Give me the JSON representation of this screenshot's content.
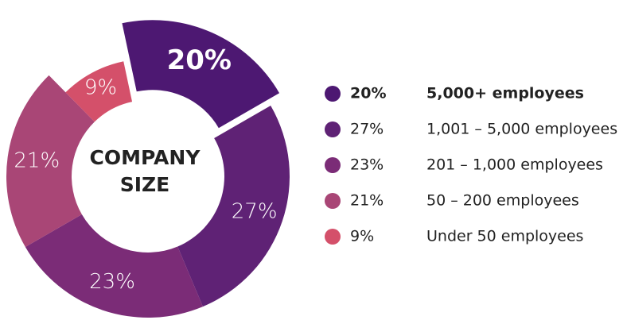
{
  "chart_data": {
    "type": "donut",
    "center_label": [
      "COMPANY",
      "SIZE"
    ],
    "categories": [
      "5,000+ employees",
      "1,001 – 5,000 employees",
      "201 – 1,000 employees",
      "50 – 200 employees",
      "Under 50 employees"
    ],
    "values": [
      20,
      27,
      23,
      21,
      9
    ],
    "value_labels": [
      "20%",
      "27%",
      "23%",
      "21%",
      "9%"
    ],
    "colors": [
      "#4d1872",
      "#5f2275",
      "#7b2c77",
      "#a94676",
      "#d4506a"
    ]
  }
}
